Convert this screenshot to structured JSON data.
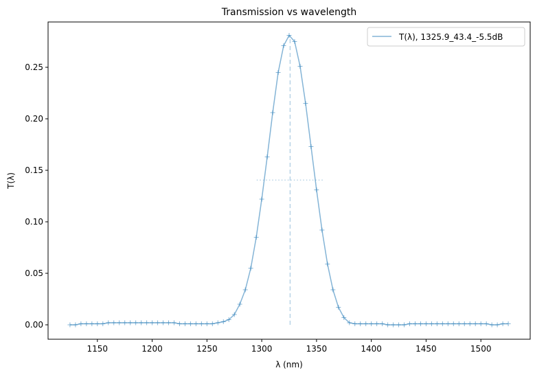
{
  "chart_data": {
    "type": "line",
    "title": "Transmission vs wavelength",
    "xlabel": "λ (nm)",
    "ylabel": "T(λ)",
    "xlim": [
      1105,
      1545
    ],
    "ylim": [
      -0.014,
      0.294
    ],
    "xticks": [
      1150,
      1200,
      1250,
      1300,
      1350,
      1400,
      1450,
      1500
    ],
    "yticks": [
      0.0,
      0.05,
      0.1,
      0.15,
      0.2,
      0.25
    ],
    "ytick_labels": [
      "0.00",
      "0.05",
      "0.10",
      "0.15",
      "0.20",
      "0.25"
    ],
    "legend_position": "upper-right",
    "series": [
      {
        "name": "T(λ), 1325.9_43.4_-5.5dB",
        "color": "#1f77b4",
        "peak_center": 1325.9,
        "peak_height": 0.281,
        "fwhm": 43.4,
        "x": [
          1125,
          1130,
          1135,
          1140,
          1145,
          1150,
          1155,
          1160,
          1165,
          1170,
          1175,
          1180,
          1185,
          1190,
          1195,
          1200,
          1205,
          1210,
          1215,
          1220,
          1225,
          1230,
          1235,
          1240,
          1245,
          1250,
          1255,
          1260,
          1265,
          1270,
          1275,
          1280,
          1285,
          1290,
          1295,
          1300,
          1305,
          1310,
          1315,
          1320,
          1325,
          1330,
          1335,
          1340,
          1345,
          1350,
          1355,
          1360,
          1365,
          1370,
          1375,
          1380,
          1385,
          1390,
          1395,
          1400,
          1405,
          1410,
          1415,
          1420,
          1425,
          1430,
          1435,
          1440,
          1445,
          1450,
          1455,
          1460,
          1465,
          1470,
          1475,
          1480,
          1485,
          1490,
          1495,
          1500,
          1505,
          1510,
          1515,
          1520,
          1525
        ],
        "y": [
          0.0,
          0.0,
          0.001,
          0.001,
          0.001,
          0.001,
          0.001,
          0.002,
          0.002,
          0.002,
          0.002,
          0.002,
          0.002,
          0.002,
          0.002,
          0.002,
          0.002,
          0.002,
          0.002,
          0.002,
          0.001,
          0.001,
          0.001,
          0.001,
          0.001,
          0.001,
          0.001,
          0.002,
          0.003,
          0.005,
          0.01,
          0.02,
          0.034,
          0.055,
          0.085,
          0.122,
          0.163,
          0.206,
          0.245,
          0.271,
          0.281,
          0.275,
          0.251,
          0.215,
          0.173,
          0.131,
          0.092,
          0.059,
          0.034,
          0.017,
          0.007,
          0.002,
          0.001,
          0.001,
          0.001,
          0.001,
          0.001,
          0.001,
          0.0,
          0.0,
          0.0,
          0.0,
          0.001,
          0.001,
          0.001,
          0.001,
          0.001,
          0.001,
          0.001,
          0.001,
          0.001,
          0.001,
          0.001,
          0.001,
          0.001,
          0.001,
          0.001,
          0.0,
          0.0,
          0.001,
          0.001
        ]
      }
    ],
    "annotations": {
      "center_line": {
        "x": 1325.9,
        "y_from": 0.0,
        "y_to": 0.281
      },
      "half_max_line": {
        "y": 0.1405,
        "x_from": 1304.2,
        "x_to": 1347.6
      }
    }
  }
}
